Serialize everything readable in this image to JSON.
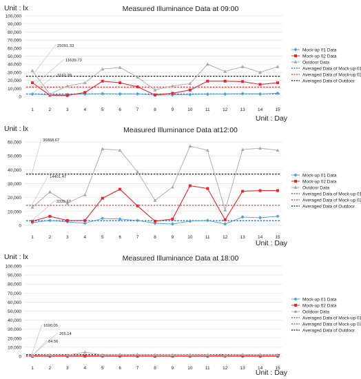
{
  "chart_data": [
    {
      "type": "line",
      "title": "Measured Illuminance Data at 09:00",
      "unit_y": "Unit : lx",
      "unit_x": "Unit : Day",
      "ylim": [
        0,
        100000
      ],
      "y_ticks": [
        "0",
        "10,000",
        "20,000",
        "30,000",
        "40,000",
        "50,000",
        "60,000",
        "70,000",
        "80,000",
        "90,000",
        "100,000"
      ],
      "x": [
        1,
        2,
        3,
        4,
        5,
        6,
        7,
        8,
        9,
        10,
        11,
        12,
        13,
        14,
        15
      ],
      "series": [
        {
          "name": "Mock-up 01 Data",
          "color": "#4f9fd8",
          "marker": "diamond",
          "values": [
            3000,
            2000,
            2500,
            3000,
            3500,
            3200,
            3200,
            1500,
            2000,
            2500,
            2800,
            3000,
            3500,
            3000,
            4000
          ]
        },
        {
          "name": "Mock-up 02 Data",
          "color": "#e8262b",
          "marker": "square",
          "values": [
            17000,
            1500,
            1200,
            5000,
            19000,
            17000,
            12000,
            2000,
            4000,
            8000,
            19000,
            19000,
            18500,
            15000,
            17000
          ]
        },
        {
          "name": "Outdoor Data",
          "color": "#a8a8a8",
          "marker": "triangle",
          "values": [
            32000,
            3000,
            13000,
            17000,
            34000,
            36000,
            24000,
            8000,
            13000,
            16000,
            40000,
            31000,
            37000,
            30000,
            37000
          ]
        }
      ],
      "averages": [
        {
          "name": "Averaged Data of Mock-up 01",
          "color": "#1a5fb4",
          "value": 3162.2,
          "label": "3162.20"
        },
        {
          "name": "Averaged Data of Mock-up 02",
          "color": "#e8262b",
          "value": 11639.73,
          "label": "11639.73"
        },
        {
          "name": "Averaged Data of Outdoor",
          "color": "#111111",
          "value": 25091.33,
          "label": "25091.33"
        }
      ]
    },
    {
      "type": "line",
      "title": "Measured Illuminance Data at12:00",
      "unit_y": "Unit : lx",
      "unit_x": "Unit : Day",
      "ylim": [
        0,
        60000
      ],
      "y_ticks": [
        "0",
        "10,000",
        "20,000",
        "30,000",
        "40,000",
        "50,000",
        "60,000"
      ],
      "x": [
        1,
        2,
        3,
        4,
        5,
        6,
        7,
        8,
        9,
        10,
        11,
        12,
        13,
        14,
        15
      ],
      "series": [
        {
          "name": "Mock-up 01 Data",
          "color": "#4f9fd8",
          "marker": "diamond",
          "values": [
            2000,
            3500,
            2500,
            1500,
            5000,
            4500,
            3500,
            1500,
            1000,
            3000,
            3500,
            1000,
            6000,
            5500,
            6500
          ]
        },
        {
          "name": "Mock-up 02 Data",
          "color": "#e8262b",
          "marker": "square",
          "values": [
            3000,
            6500,
            3500,
            3500,
            19500,
            26000,
            14000,
            3000,
            4500,
            28500,
            26500,
            4000,
            24500,
            25000,
            25000
          ]
        },
        {
          "name": "Outdoor Data",
          "color": "#a8a8a8",
          "marker": "triangle",
          "values": [
            13000,
            24000,
            16000,
            22000,
            55000,
            54000,
            38500,
            18000,
            27500,
            57000,
            54000,
            11000,
            54500,
            55500,
            54000
          ]
        }
      ],
      "averages": [
        {
          "name": "Averaged Data of Mock-up 01",
          "color": "#1a5fb4",
          "value": 3339.67,
          "label": "3339.67"
        },
        {
          "name": "Averaged Data of Mock-up 02",
          "color": "#e8262b",
          "value": 14401.47,
          "label": "14401.47"
        },
        {
          "name": "Averaged Data of Outdoor",
          "color": "#111111",
          "value": 36868.67,
          "label": "36868.67"
        }
      ]
    },
    {
      "type": "line",
      "title": "Measured Illuminance Data at 18:00",
      "unit_y": "Unit : lx",
      "unit_x": "Unit : Day",
      "ylim": [
        0,
        100000
      ],
      "y_ticks": [
        "0",
        "10,000",
        "20,000",
        "30,000",
        "40,000",
        "50,000",
        "60,000",
        "70,000",
        "80,000",
        "90,000",
        "100,000"
      ],
      "x": [
        1,
        2,
        3,
        4,
        5,
        6,
        7,
        8,
        9,
        10,
        11,
        12,
        13,
        14,
        15
      ],
      "series": [
        {
          "name": "Mock-up 01 Data",
          "color": "#4f9fd8",
          "marker": "diamond",
          "values": [
            60,
            80,
            70,
            90,
            100,
            90,
            80,
            70,
            80,
            90,
            100,
            80,
            90,
            100,
            90
          ]
        },
        {
          "name": "Mock-up 02 Data",
          "color": "#e8262b",
          "marker": "square",
          "values": [
            200,
            250,
            200,
            300,
            300,
            280,
            250,
            220,
            260,
            280,
            300,
            250,
            280,
            300,
            280
          ]
        },
        {
          "name": "Outdoor Data",
          "color": "#a8a8a8",
          "marker": "triangle",
          "values": [
            1000,
            1500,
            1200,
            4500,
            1500,
            2000,
            2000,
            1500,
            1500,
            1500,
            1500,
            1200,
            2000,
            1800,
            1500
          ]
        }
      ],
      "averages": [
        {
          "name": "Averaged Data of Mock-up 01",
          "color": "#1a5fb4",
          "value": 84.56,
          "label": "84.56"
        },
        {
          "name": "Averaged Data of Mock-up 02",
          "color": "#e8262b",
          "value": 265.14,
          "label": "265.14"
        },
        {
          "name": "Averaged Data of Outdoor",
          "color": "#111111",
          "value": 1690.05,
          "label": "1690.05"
        }
      ]
    }
  ]
}
